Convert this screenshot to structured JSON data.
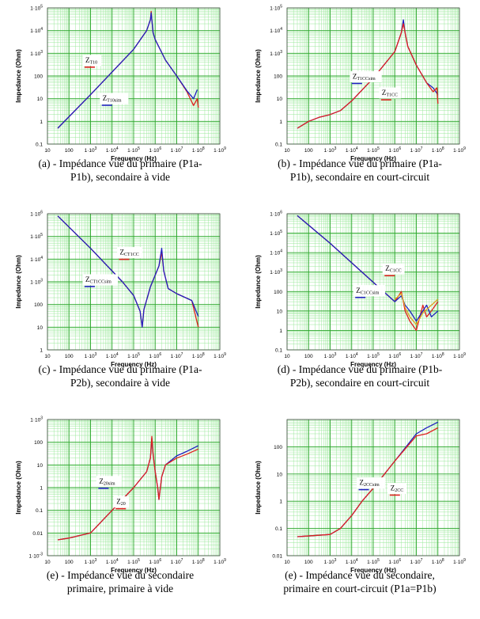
{
  "chart_data": [
    {
      "type": "line",
      "log_x": true,
      "log_y": true,
      "xlabel": "Frequency (Hz)",
      "ylabel": "Impedance (Ohm)",
      "xlim": [
        10,
        1000000000
      ],
      "ylim": [
        0.1,
        100000
      ],
      "x_ticks": [
        "10",
        "100",
        "1·10",
        "1·10",
        "1·10",
        "1·10",
        "1·10",
        "1·10",
        "1·10"
      ],
      "x_tick_exps": [
        "",
        "",
        "3",
        "4",
        "5",
        "6",
        "7",
        "8",
        "9"
      ],
      "y_ticks": [
        "0.1",
        "1",
        "10",
        "100",
        "1·10",
        "1·10",
        "1·10"
      ],
      "y_tick_exps": [
        "",
        "",
        "",
        "",
        "3",
        "4",
        "5"
      ],
      "grid": true,
      "caption": [
        "(a) - Impédance vue du primaire  (P1a-",
        "P1b), secondaire à vide"
      ],
      "series": [
        {
          "name_main": "Z",
          "name_sub": "T10",
          "color": "#e02020",
          "legend_color": "#e02020",
          "x": [
            30,
            1000,
            100000,
            400000,
            600000,
            650000,
            700000,
            800000,
            1000000,
            3000000,
            10000000,
            30000000,
            60000000,
            90000000,
            100000000
          ],
          "y": [
            0.5,
            15,
            1500,
            10000,
            30000,
            70000,
            30000,
            8000,
            4000,
            500,
            100,
            20,
            5,
            10,
            4
          ]
        },
        {
          "name_main": "Z",
          "name_sub": "T10sim",
          "color": "#2020c0",
          "legend_color": "#2020c0",
          "x": [
            30,
            1000,
            100000,
            400000,
            600000,
            650000,
            700000,
            800000,
            1000000,
            3000000,
            10000000,
            30000000,
            60000000,
            90000000
          ],
          "y": [
            0.5,
            15,
            1500,
            10000,
            30000,
            60000,
            30000,
            8000,
            4000,
            500,
            100,
            22,
            10,
            25
          ]
        }
      ]
    },
    {
      "type": "line",
      "log_x": true,
      "log_y": true,
      "xlabel": "Frequency (Hz)",
      "ylabel": "Impedance (Ohm)",
      "xlim": [
        10,
        1000000000
      ],
      "ylim": [
        0.1,
        100000
      ],
      "x_ticks": [
        "10",
        "100",
        "1·10",
        "1·10",
        "1·10",
        "1·10",
        "1·10",
        "1·10",
        "1·10"
      ],
      "x_tick_exps": [
        "",
        "",
        "3",
        "4",
        "5",
        "6",
        "7",
        "8",
        "9"
      ],
      "y_ticks": [
        "0.1",
        "1",
        "10",
        "100",
        "1·10",
        "1·10",
        "1·10"
      ],
      "y_tick_exps": [
        "",
        "",
        "",
        "",
        "3",
        "4",
        "5"
      ],
      "grid": true,
      "caption": [
        "(b) - Impédance vue du primaire (P1a-",
        "P1b), secondaire en court-circuit"
      ],
      "series": [
        {
          "name_main": "Z",
          "name_sub": "T1CCsim",
          "color": "#2020c0",
          "legend_color": "#2020c0",
          "x": [
            30,
            100,
            300,
            1000,
            3000,
            10000,
            100000,
            1000000,
            2000000,
            2500000,
            3000000,
            4000000,
            10000000,
            30000000,
            60000000,
            100000000
          ],
          "y": [
            0.5,
            1,
            1.5,
            2,
            3,
            8,
            80,
            1200,
            8000,
            30000,
            8000,
            2000,
            300,
            50,
            30,
            15
          ]
        },
        {
          "name_main": "Z",
          "name_sub": "T1CC",
          "color": "#e02020",
          "legend_color": "#e02020",
          "x": [
            30,
            100,
            300,
            1000,
            3000,
            10000,
            100000,
            1000000,
            2000000,
            2500000,
            3000000,
            4000000,
            10000000,
            30000000,
            60000000,
            90000000,
            100000000
          ],
          "y": [
            0.5,
            1,
            1.5,
            2,
            3,
            8,
            80,
            1200,
            8000,
            20000,
            8000,
            2000,
            300,
            50,
            20,
            30,
            6
          ]
        }
      ]
    },
    {
      "type": "line",
      "log_x": true,
      "log_y": true,
      "xlabel": "Frequency (Hz)",
      "ylabel": "Impedance (Ohm)",
      "xlim": [
        10,
        1000000000
      ],
      "ylim": [
        1,
        1000000
      ],
      "x_ticks": [
        "10",
        "100",
        "1·10",
        "1·10",
        "1·10",
        "1·10",
        "1·10",
        "1·10",
        "1·10"
      ],
      "x_tick_exps": [
        "",
        "",
        "3",
        "4",
        "5",
        "6",
        "7",
        "8",
        "9"
      ],
      "y_ticks": [
        "1",
        "10",
        "100",
        "1·10",
        "1·10",
        "1·10",
        "1·10"
      ],
      "y_tick_exps": [
        "",
        "",
        "",
        "3",
        "4",
        "5",
        "6"
      ],
      "grid": true,
      "caption": [
        "(c) - Impédance vue du primaire (P1a-",
        "P2b), secondaire à  vide"
      ],
      "series": [
        {
          "name_main": "Z",
          "name_sub": "CT1CC",
          "color": "#e02020",
          "legend_color": "#e02020",
          "x": [
            30,
            1000,
            30000,
            100000,
            200000,
            250000,
            300000,
            600000,
            1500000,
            2000000,
            2500000,
            4000000,
            10000000,
            50000000,
            100000000
          ],
          "y": [
            800000,
            30000,
            1000,
            250,
            50,
            10,
            60,
            600,
            5000,
            20000,
            3000,
            500,
            300,
            150,
            10
          ]
        },
        {
          "name_main": "Z",
          "name_sub": "CT1CCsim",
          "color": "#2020c0",
          "legend_color": "#2020c0",
          "x": [
            30,
            1000,
            30000,
            100000,
            200000,
            250000,
            300000,
            600000,
            1500000,
            2000000,
            2500000,
            4000000,
            10000000,
            50000000,
            100000000
          ],
          "y": [
            800000,
            30000,
            1000,
            250,
            50,
            10,
            60,
            600,
            5000,
            30000,
            3000,
            500,
            300,
            150,
            30
          ]
        }
      ]
    },
    {
      "type": "line",
      "log_x": true,
      "log_y": true,
      "xlabel": "Frequency (Hz)",
      "ylabel": "Impedance (Ohm)",
      "xlim": [
        10,
        1000000000
      ],
      "ylim": [
        0.1,
        1000000
      ],
      "x_ticks": [
        "10",
        "100",
        "1·10",
        "1·10",
        "1·10",
        "1·10",
        "1·10",
        "1·10",
        "1·10"
      ],
      "x_tick_exps": [
        "",
        "",
        "3",
        "4",
        "5",
        "6",
        "7",
        "8",
        "9"
      ],
      "y_ticks": [
        "0.1",
        "1",
        "10",
        "100",
        "1·10",
        "1·10",
        "1·10",
        "1·10"
      ],
      "y_tick_exps": [
        "",
        "",
        "",
        "",
        "3",
        "4",
        "5",
        "6"
      ],
      "grid": true,
      "caption": [
        "(d) - Impédance vue du primaire (P1b-",
        "P2b), secondaire en court-circuit"
      ],
      "series": [
        {
          "name_main": "Z",
          "name_sub": "C1CC",
          "color": "#e02020",
          "legend_color": "#e02020",
          "x": [
            30,
            1000,
            100000,
            1000000,
            2000000,
            3000000,
            5000000,
            10000000,
            20000000,
            30000000,
            50000000,
            100000000
          ],
          "y": [
            800000,
            30000,
            300,
            30,
            100,
            10,
            3,
            1,
            20,
            5,
            10,
            30
          ]
        },
        {
          "name_main": "Z",
          "name_sub": "C1CCsim",
          "color": "#2020c0",
          "legend_color": "#2020c0",
          "x": [
            30,
            1000,
            100000,
            1000000,
            2000000,
            3000000,
            5000000,
            10000000,
            20000000,
            30000000,
            50000000,
            100000000
          ],
          "y": [
            800000,
            30000,
            300,
            30,
            60,
            20,
            10,
            3,
            10,
            20,
            5,
            10
          ]
        },
        {
          "name_main": "",
          "name_sub": "",
          "color": "#e0a020",
          "legend_color": "",
          "x": [
            1000000,
            2000000,
            3000000,
            5000000,
            10000000,
            20000000,
            50000000,
            100000000
          ],
          "y": [
            40,
            80,
            15,
            5,
            2,
            8,
            20,
            40
          ]
        }
      ]
    },
    {
      "type": "line",
      "log_x": true,
      "log_y": true,
      "xlabel": "Frequency (Hz)",
      "ylabel": "Impedance (Ohm)",
      "xlim": [
        10,
        1000000000
      ],
      "ylim": [
        0.001,
        1000
      ],
      "x_ticks": [
        "10",
        "100",
        "1·10",
        "1·10",
        "1·10",
        "1·10",
        "1·10",
        "1·10",
        "1·10"
      ],
      "x_tick_exps": [
        "",
        "",
        "3",
        "4",
        "5",
        "6",
        "7",
        "8",
        "9"
      ],
      "y_ticks": [
        "1·10",
        "0.01",
        "0.1",
        "1",
        "10",
        "100",
        "1·10"
      ],
      "y_tick_exps": [
        "-3",
        "",
        "",
        "",
        "",
        "",
        "3"
      ],
      "grid": true,
      "caption": [
        "(e) - Impédance vue du secondaire",
        "primaire, primaire à vide"
      ],
      "series": [
        {
          "name_main": "Z",
          "name_sub": "20sim",
          "color": "#2020c0",
          "legend_color": "#2020c0",
          "x": [
            30,
            100,
            1000,
            10000,
            100000,
            400000,
            600000,
            700000,
            800000,
            1000000,
            1300000,
            1500000,
            2000000,
            3000000,
            10000000,
            30000000,
            100000000
          ],
          "y": [
            0.005,
            0.006,
            0.01,
            0.1,
            1,
            5,
            20,
            150,
            30,
            5,
            1,
            0.3,
            3,
            10,
            25,
            40,
            70
          ]
        },
        {
          "name_main": "Z",
          "name_sub": "20",
          "color": "#e02020",
          "legend_color": "#e02020",
          "x": [
            30,
            100,
            1000,
            10000,
            100000,
            400000,
            600000,
            700000,
            800000,
            1000000,
            1300000,
            1500000,
            2000000,
            3000000,
            10000000,
            30000000,
            100000000
          ],
          "y": [
            0.005,
            0.006,
            0.01,
            0.1,
            1,
            5,
            20,
            180,
            30,
            5,
            1,
            0.3,
            3,
            10,
            20,
            30,
            50
          ]
        }
      ]
    },
    {
      "type": "line",
      "log_x": true,
      "log_y": true,
      "xlabel": "Frequency (Hz)",
      "ylabel": "Impedance (Ohm)",
      "xlim": [
        10,
        1000000000
      ],
      "ylim": [
        0.001,
        100
      ],
      "x_ticks": [
        "10",
        "100",
        "1·10",
        "1·10",
        "1·10",
        "1·10",
        "1·10",
        "1·10",
        "1·10"
      ],
      "x_tick_exps": [
        "",
        "",
        "3",
        "4",
        "5",
        "6",
        "7",
        "8",
        "9"
      ],
      "y_ticks": [
        "0.01",
        "0.1",
        "1",
        "10",
        "100"
      ],
      "y_tick_exps": [
        "",
        "",
        "",
        "",
        ""
      ],
      "grid": true,
      "caption": [
        "(e) - Impédance vue du secondaire,",
        "primaire en court-circuit (P1a=P1b)"
      ],
      "series": [
        {
          "name_main": "Z",
          "name_sub": "2CCsim",
          "color": "#2020c0",
          "legend_color": "#2020c0",
          "x": [
            30,
            1000,
            3000,
            10000,
            30000,
            100000,
            1000000,
            10000000,
            30000000,
            100000000
          ],
          "y": [
            0.005,
            0.006,
            0.01,
            0.03,
            0.1,
            0.3,
            3,
            30,
            50,
            80
          ]
        },
        {
          "name_main": "Z",
          "name_sub": "2CC",
          "color": "#e02020",
          "legend_color": "#e02020",
          "x": [
            30,
            1000,
            3000,
            10000,
            30000,
            100000,
            1000000,
            10000000,
            30000000,
            100000000
          ],
          "y": [
            0.005,
            0.006,
            0.01,
            0.03,
            0.1,
            0.3,
            3,
            25,
            30,
            50
          ]
        }
      ]
    }
  ]
}
